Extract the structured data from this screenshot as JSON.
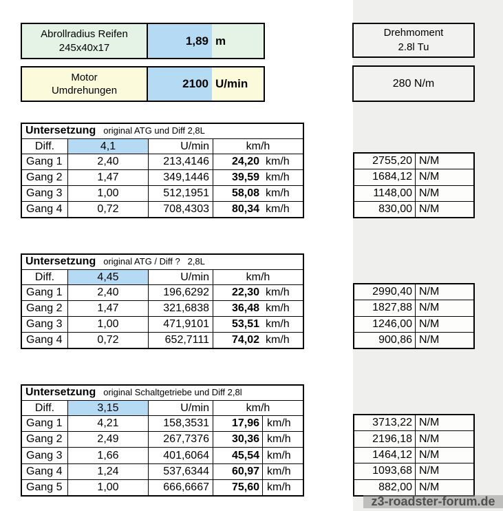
{
  "inputs": {
    "tire": {
      "label1": "Abrollradius Reifen",
      "label2": "245x40x17",
      "value": "1,89",
      "unit": "m"
    },
    "rpm": {
      "label1": "Motor",
      "label2": "Umdrehungen",
      "value": "2100",
      "unit": "U/min"
    }
  },
  "torque_box": {
    "label1": "Drehmoment",
    "label2": "2.8l Tu",
    "value": "280 N/m"
  },
  "tables": [
    {
      "title": "Untersetzung",
      "subtitle": "original ATG und Diff 2,8L",
      "diff_label": "Diff.",
      "diff_value": "4,1",
      "umin_header": "U/min",
      "kmh_header": "km/h",
      "rows": [
        {
          "gang": "Gang 1",
          "ratio": "2,40",
          "umin": "213,4146",
          "speed": "24,20",
          "speed_unit": "km/h",
          "torque": "2755,20",
          "torque_unit": "N/M"
        },
        {
          "gang": "Gang 2",
          "ratio": "1,47",
          "umin": "349,1446",
          "speed": "39,59",
          "speed_unit": "km/h",
          "torque": "1684,12",
          "torque_unit": "N/M"
        },
        {
          "gang": "Gang 3",
          "ratio": "1,00",
          "umin": "512,1951",
          "speed": "58,08",
          "speed_unit": "km/h",
          "torque": "1148,00",
          "torque_unit": "N/M"
        },
        {
          "gang": "Gang 4",
          "ratio": "0,72",
          "umin": "708,4303",
          "speed": "80,34",
          "speed_unit": "km/h",
          "torque": "830,00",
          "torque_unit": "N/M"
        }
      ]
    },
    {
      "title": "Untersetzung",
      "subtitle": "original ATG / Diff ?   2,8L",
      "diff_label": "Diff.",
      "diff_value": "4,45",
      "umin_header": "U/min",
      "kmh_header": "km/h",
      "rows": [
        {
          "gang": "Gang 1",
          "ratio": "2,40",
          "umin": "196,6292",
          "speed": "22,30",
          "speed_unit": "km/h",
          "torque": "2990,40",
          "torque_unit": "N/M"
        },
        {
          "gang": "Gang 2",
          "ratio": "1,47",
          "umin": "321,6838",
          "speed": "36,48",
          "speed_unit": "km/h",
          "torque": "1827,88",
          "torque_unit": "N/M"
        },
        {
          "gang": "Gang 3",
          "ratio": "1,00",
          "umin": "471,9101",
          "speed": "53,51",
          "speed_unit": "km/h",
          "torque": "1246,00",
          "torque_unit": "N/M"
        },
        {
          "gang": "Gang 4",
          "ratio": "0,72",
          "umin": "652,7111",
          "speed": "74,02",
          "speed_unit": "km/h",
          "torque": "900,86",
          "torque_unit": "N/M"
        }
      ]
    },
    {
      "title": "Untersetzung",
      "subtitle": "original Schaltgetriebe und Diff 2,8l",
      "diff_label": "Diff.",
      "diff_value": "3,15",
      "umin_header": "U/min",
      "kmh_header": "km/h",
      "rows": [
        {
          "gang": "Gang 1",
          "ratio": "4,21",
          "umin": "158,3531",
          "speed": "17,96",
          "speed_unit": "km/h",
          "torque": "3713,22",
          "torque_unit": "N/M"
        },
        {
          "gang": "Gang 2",
          "ratio": "2,49",
          "umin": "267,7376",
          "speed": "30,36",
          "speed_unit": "km/h",
          "torque": "2196,18",
          "torque_unit": "N/M"
        },
        {
          "gang": "Gang 3",
          "ratio": "1,66",
          "umin": "401,6064",
          "speed": "45,54",
          "speed_unit": "km/h",
          "torque": "1464,12",
          "torque_unit": "N/M"
        },
        {
          "gang": "Gang 4",
          "ratio": "1,24",
          "umin": "537,6344",
          "speed": "60,97",
          "speed_unit": "km/h",
          "torque": "1093,68",
          "torque_unit": "N/M"
        },
        {
          "gang": "Gang 5",
          "ratio": "1,00",
          "umin": "666,6667",
          "speed": "75,60",
          "speed_unit": "km/h",
          "torque": "882,00",
          "torque_unit": "N/M"
        }
      ]
    }
  ],
  "watermark": "z3-roadster-forum.de",
  "colors": {
    "input_highlight_blue": "#b5daf3",
    "tire_box_green": "#e4f3e6",
    "rpm_box_yellow": "#fbfbdc",
    "right_band_gray": "#efefee",
    "border_black": "#000000"
  }
}
